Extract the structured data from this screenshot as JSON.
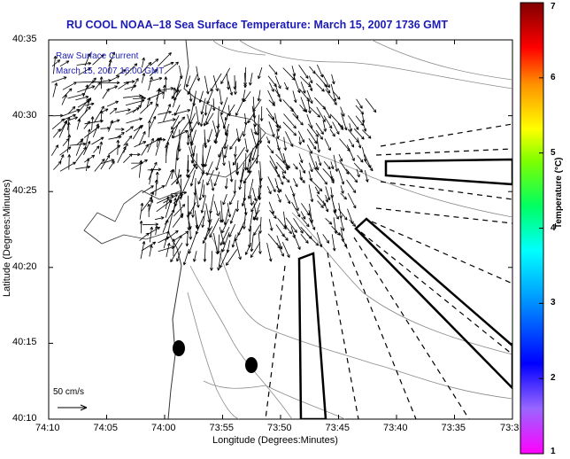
{
  "title": "RU COOL  NOAA–18  Sea Surface Temperature:  March 15, 2007 1736 GMT",
  "legend": {
    "line1": "Raw Surface Current",
    "line2": "March 15, 2007 16:00 GMT"
  },
  "axes": {
    "xlabel": "Longitude (Degrees:Minutes)",
    "ylabel": "Latitude (Degrees:Minutes)",
    "xticks": [
      "74:10",
      "74:05",
      "74:00",
      "73:55",
      "73:50",
      "73:45",
      "73:40",
      "73:35",
      "73:3"
    ],
    "yticks": [
      "40:35",
      "40:30",
      "40:25",
      "40:20",
      "40:15",
      "40:10"
    ]
  },
  "colorbar": {
    "title": "Temperature (°C)",
    "ticks": [
      "7",
      "6",
      "5",
      "4",
      "3",
      "2",
      "1"
    ],
    "colors": [
      "#ff00ff",
      "#0000ff",
      "#00ffff",
      "#00ff00",
      "#ffff00",
      "#ff8000",
      "#ff0000",
      "#800000"
    ]
  },
  "scale": {
    "label": "50 cm/s"
  },
  "colors": {
    "title": "#1c1cb4",
    "contour": "#8a8a8a",
    "vector": "#000000"
  }
}
